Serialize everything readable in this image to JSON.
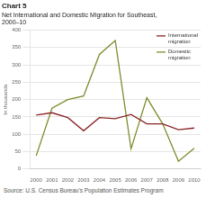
{
  "chart_data": {
    "type": "line",
    "title": "Chart 5",
    "subtitle": [
      "Net International and Domestic Migration for Southeast,",
      "2000–10"
    ],
    "source": "Source: U.S. Census Bureau's Population Estimates Program",
    "y_label": "In thousands",
    "x": [
      2000,
      2001,
      2002,
      2003,
      2004,
      2005,
      2006,
      2007,
      2008,
      2009,
      2010
    ],
    "xlim": [
      1999.6,
      2010.4
    ],
    "xticks": [
      2000,
      2001,
      2002,
      2003,
      2004,
      2005,
      2006,
      2007,
      2008,
      2009,
      2010
    ],
    "ylim": [
      0,
      400
    ],
    "yticks": [
      0,
      50,
      100,
      150,
      200,
      250,
      300,
      350,
      400
    ],
    "grid": "y",
    "legend": "upper right",
    "series": [
      {
        "name": "International\nmigration",
        "color": "#8b2525",
        "values": [
          155,
          162,
          148,
          110,
          148,
          145,
          157,
          130,
          130,
          113,
          118
        ]
      },
      {
        "name": "Domestic\nmigration",
        "color": "#7b8c2a",
        "values": [
          38,
          175,
          200,
          210,
          330,
          370,
          58,
          205,
          130,
          22,
          60
        ]
      }
    ]
  }
}
